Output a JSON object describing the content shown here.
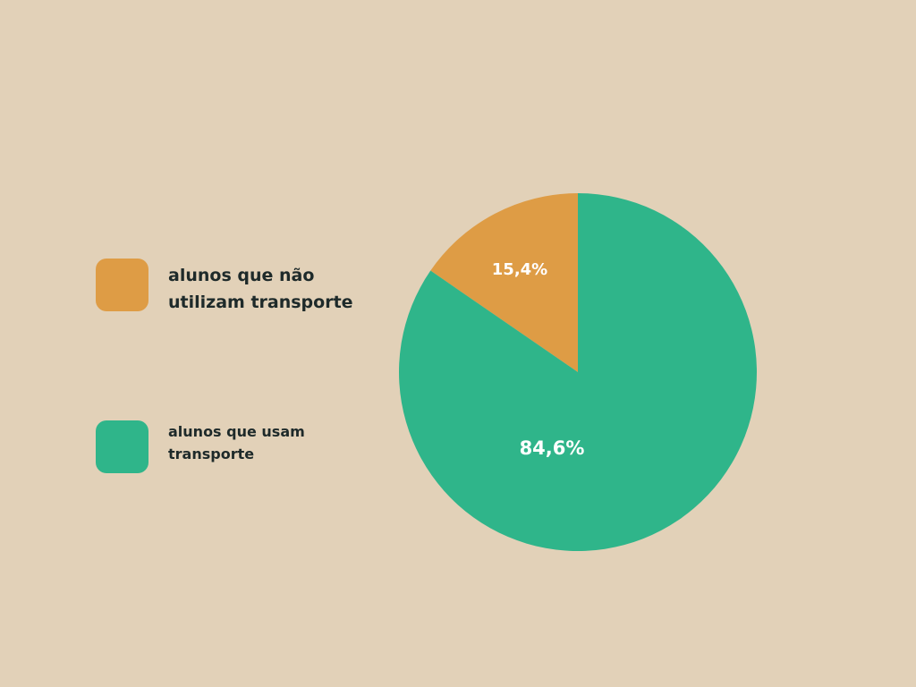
{
  "chart_data": {
    "type": "pie",
    "categories": [
      "alunos que não utilizam transporte",
      "alunos que usam transporte"
    ],
    "values": [
      15.4,
      84.6
    ],
    "value_labels": [
      "15,4%",
      "84,6%"
    ],
    "colors": [
      "#de9c45",
      "#2fb58a"
    ],
    "legend_placement": "left",
    "title": ""
  },
  "legend": {
    "items": [
      {
        "label": "alunos que não utilizam transporte",
        "color": "#de9c45"
      },
      {
        "label": "alunos que usam transporte",
        "color": "#2fb58a"
      }
    ]
  },
  "background_color": "#e2d1b8"
}
